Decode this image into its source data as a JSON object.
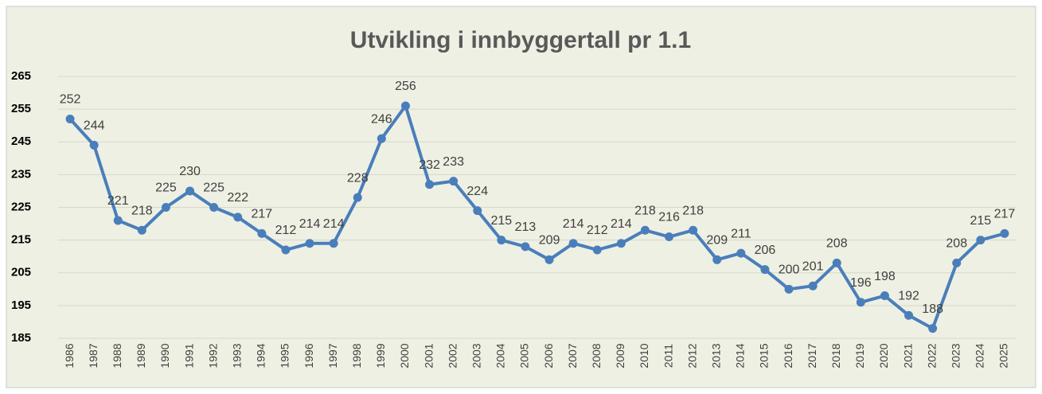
{
  "chart_data": {
    "type": "line",
    "title": "Utvikling i innbyggertall pr 1.1",
    "categories": [
      "1986",
      "1987",
      "1988",
      "1989",
      "1990",
      "1991",
      "1992",
      "1993",
      "1994",
      "1995",
      "1996",
      "1997",
      "1998",
      "1999",
      "2000",
      "2001",
      "2002",
      "2003",
      "2004",
      "2005",
      "2006",
      "2007",
      "2008",
      "2009",
      "2010",
      "2011",
      "2012",
      "2013",
      "2014",
      "2015",
      "2016",
      "2017",
      "2018",
      "2019",
      "2020",
      "2021",
      "2022",
      "2023",
      "2024",
      "2025"
    ],
    "values": [
      252,
      244,
      221,
      218,
      225,
      230,
      225,
      222,
      217,
      212,
      214,
      214,
      228,
      246,
      256,
      232,
      233,
      224,
      215,
      213,
      209,
      214,
      212,
      214,
      218,
      216,
      218,
      209,
      211,
      206,
      200,
      201,
      208,
      196,
      198,
      192,
      188,
      208,
      215,
      217
    ],
    "color": "#4a7ebb",
    "ylim": [
      185,
      265
    ],
    "yticks": [
      185,
      195,
      205,
      215,
      225,
      235,
      245,
      255,
      265
    ],
    "grid": true
  }
}
